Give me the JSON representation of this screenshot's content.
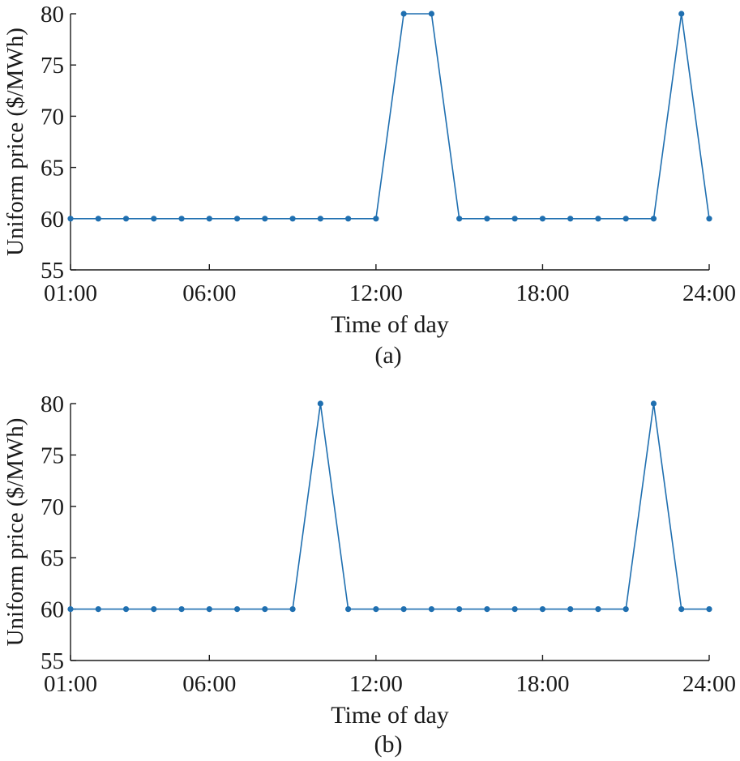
{
  "colors": {
    "series": "#1f6fb0",
    "axis": "#1a1a1a"
  },
  "chart_data": [
    {
      "type": "line",
      "panel_label": "(a)",
      "xlabel": "Time of day",
      "ylabel": "Uniform price ($/MWh)",
      "x": [
        1,
        2,
        3,
        4,
        5,
        6,
        7,
        8,
        9,
        10,
        11,
        12,
        13,
        14,
        15,
        16,
        17,
        18,
        19,
        20,
        21,
        22,
        23,
        24
      ],
      "xlim": [
        1,
        24
      ],
      "xticks": [
        1,
        6,
        12,
        18,
        24
      ],
      "xtick_labels": [
        "01:00",
        "06:00",
        "12:00",
        "18:00",
        "24:00"
      ],
      "ylim": [
        55,
        80
      ],
      "yticks": [
        55,
        60,
        65,
        70,
        75,
        80
      ],
      "ytick_labels": [
        "55",
        "60",
        "65",
        "70",
        "75",
        "80"
      ],
      "grid": false,
      "series": [
        {
          "values": [
            60,
            60,
            60,
            60,
            60,
            60,
            60,
            60,
            60,
            60,
            60,
            60,
            80,
            80,
            60,
            60,
            60,
            60,
            60,
            60,
            60,
            60,
            80,
            60
          ]
        }
      ]
    },
    {
      "type": "line",
      "panel_label": "(b)",
      "xlabel": "Time of day",
      "ylabel": "Uniform price ($/MWh)",
      "x": [
        1,
        2,
        3,
        4,
        5,
        6,
        7,
        8,
        9,
        10,
        11,
        12,
        13,
        14,
        15,
        16,
        17,
        18,
        19,
        20,
        21,
        22,
        23,
        24
      ],
      "xlim": [
        1,
        24
      ],
      "xticks": [
        1,
        6,
        12,
        18,
        24
      ],
      "xtick_labels": [
        "01:00",
        "06:00",
        "12:00",
        "18:00",
        "24:00"
      ],
      "ylim": [
        55,
        80
      ],
      "yticks": [
        55,
        60,
        65,
        70,
        75,
        80
      ],
      "ytick_labels": [
        "55",
        "60",
        "65",
        "70",
        "75",
        "80"
      ],
      "grid": false,
      "series": [
        {
          "values": [
            60,
            60,
            60,
            60,
            60,
            60,
            60,
            60,
            60,
            80,
            60,
            60,
            60,
            60,
            60,
            60,
            60,
            60,
            60,
            60,
            60,
            80,
            60,
            60
          ]
        }
      ]
    }
  ]
}
